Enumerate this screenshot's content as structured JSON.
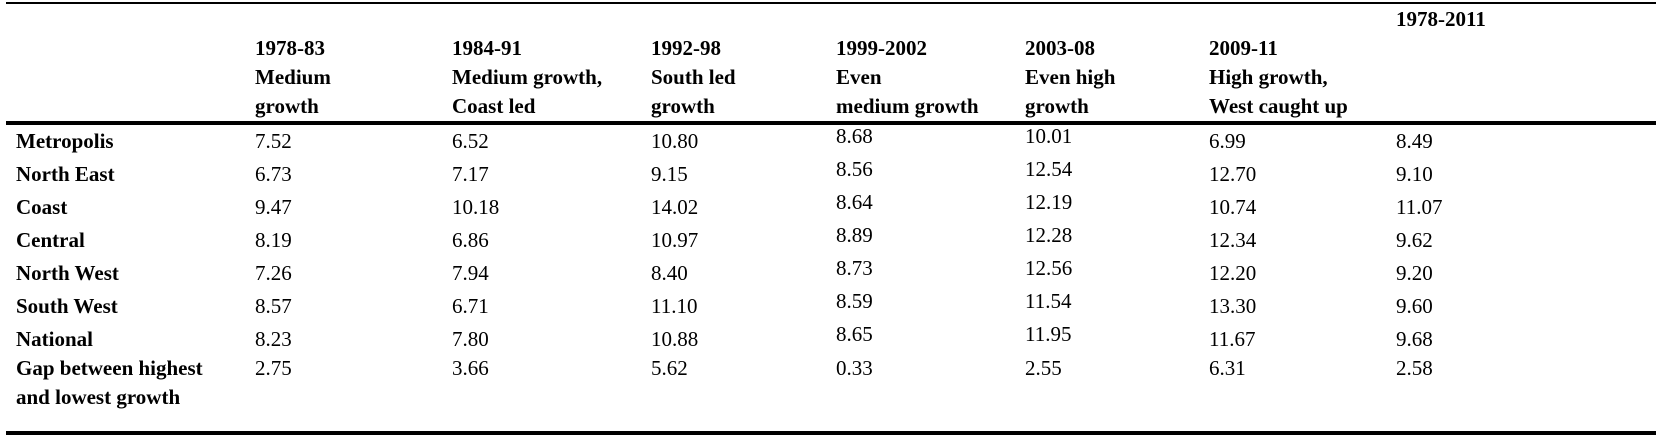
{
  "table": {
    "columns": [
      {
        "period": "1978-83",
        "desc": [
          "Medium",
          "growth"
        ]
      },
      {
        "period": "1984-91",
        "desc": [
          "Medium growth,",
          "Coast led"
        ]
      },
      {
        "period": "1992-98",
        "desc": [
          "South led",
          "growth"
        ]
      },
      {
        "period": "1999-2002",
        "desc": [
          "Even",
          "medium growth"
        ]
      },
      {
        "period": "2003-08",
        "desc": [
          "Even high",
          "growth"
        ]
      },
      {
        "period": "2009-11",
        "desc": [
          "High growth,",
          "West caught up"
        ]
      },
      {
        "period": "1978-2011",
        "desc": []
      }
    ],
    "rows": [
      {
        "label": [
          "Metropolis"
        ],
        "values": [
          "7.52",
          "6.52",
          "10.80",
          "8.68",
          "10.01",
          "6.99",
          "8.49"
        ]
      },
      {
        "label": [
          "North East"
        ],
        "values": [
          "6.73",
          "7.17",
          "9.15",
          "8.56",
          "12.54",
          "12.70",
          "9.10"
        ]
      },
      {
        "label": [
          "Coast"
        ],
        "values": [
          "9.47",
          "10.18",
          "14.02",
          "8.64",
          "12.19",
          "10.74",
          "11.07"
        ]
      },
      {
        "label": [
          "Central"
        ],
        "values": [
          "8.19",
          "6.86",
          "10.97",
          "8.89",
          "12.28",
          "12.34",
          "9.62"
        ]
      },
      {
        "label": [
          "North West"
        ],
        "values": [
          "7.26",
          "7.94",
          "8.40",
          "8.73",
          "12.56",
          "12.20",
          "9.20"
        ]
      },
      {
        "label": [
          "South West"
        ],
        "values": [
          "8.57",
          "6.71",
          "11.10",
          "8.59",
          "11.54",
          "13.30",
          "9.60"
        ]
      },
      {
        "label": [
          "National"
        ],
        "values": [
          "8.23",
          "7.80",
          "10.88",
          "8.65",
          "11.95",
          "11.67",
          "9.68"
        ]
      },
      {
        "label": [
          "Gap between highest",
          "and lowest growth"
        ],
        "values": [
          "2.75",
          "3.66",
          "5.62",
          "0.33",
          "2.55",
          "6.31",
          "2.58"
        ]
      }
    ]
  }
}
